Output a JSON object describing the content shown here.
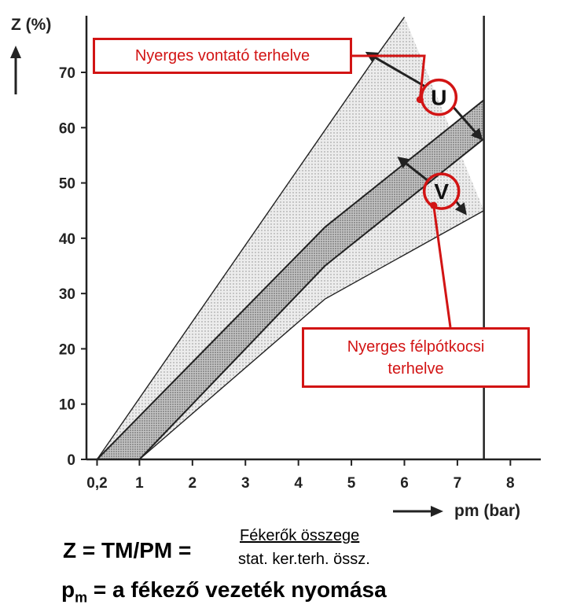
{
  "chart_data": {
    "type": "area",
    "ylabel": "Z (%)",
    "xlabel": "pm (bar)",
    "x_ticks": [
      "0,2",
      "1",
      "2",
      "3",
      "4",
      "5",
      "6",
      "7",
      "8"
    ],
    "x_tick_values": [
      0.2,
      1,
      2,
      3,
      4,
      5,
      6,
      7,
      8
    ],
    "y_ticks": [
      "0",
      "10",
      "20",
      "30",
      "40",
      "50",
      "60",
      "70"
    ],
    "y_tick_values": [
      0,
      10,
      20,
      30,
      40,
      50,
      60,
      70
    ],
    "xlim": [
      0,
      8
    ],
    "ylim": [
      0,
      80
    ],
    "limit_x": 7.5,
    "series": [
      {
        "upper": [
          [
            0.2,
            0
          ],
          [
            5.4,
            72
          ],
          [
            6.0,
            80
          ]
        ],
        "lower": [
          [
            1.0,
            0
          ],
          [
            4.5,
            29
          ],
          [
            7.5,
            45
          ]
        ]
      },
      {
        "upper": [
          [
            0.2,
            0
          ],
          [
            4.5,
            42
          ],
          [
            7.5,
            65
          ]
        ],
        "lower": [
          [
            1.0,
            0
          ],
          [
            4.5,
            35
          ],
          [
            7.5,
            58
          ]
        ]
      }
    ],
    "annotations": [
      {
        "label": "U",
        "x": 6.65,
        "y": 65.5,
        "arrow_from": [
          5.3,
          73.5
        ],
        "arrow_to": [
          7.45,
          58
        ]
      },
      {
        "label": "V",
        "x": 6.7,
        "y": 48.5,
        "arrow_from": [
          5.9,
          54.5
        ],
        "arrow_to": [
          7.15,
          44.5
        ]
      }
    ]
  },
  "callouts": {
    "u": "Nyerges vontató terhelve",
    "v_line1": "Nyerges félpótkocsi",
    "v_line2": "terhelve"
  },
  "formula": {
    "lhs": "Z = TM/PM =",
    "numerator": "Fékerők összege",
    "denominator": "stat. ker.terh. össz.",
    "def_p": "p",
    "def_sub": "m",
    "def_rest": " = a fékező vezeték nyomása"
  },
  "colors": {
    "callout": "#d21414",
    "band": "#c8c8c8",
    "axis": "#222222"
  }
}
